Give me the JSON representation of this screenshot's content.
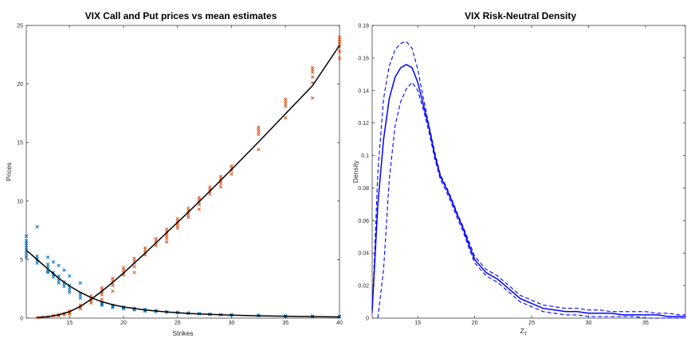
{
  "chart_data": [
    {
      "type": "scatter",
      "title": "VIX Call and Put prices vs mean estimates",
      "xlabel": "Strikes",
      "ylabel": "Prices",
      "xlim": [
        11,
        40
      ],
      "ylim": [
        0,
        25
      ],
      "xticks": [
        15,
        20,
        25,
        30,
        35,
        40
      ],
      "yticks": [
        0,
        5,
        10,
        15,
        20,
        25
      ],
      "grid": false,
      "colors": {
        "puts": "#0072BD",
        "calls": "#D95319",
        "mean": "#000000"
      },
      "series": [
        {
          "marker": "x",
          "color": "#0072BD",
          "points": [
            [
              11,
              6.6
            ],
            [
              11,
              6.4
            ],
            [
              11,
              6.2
            ],
            [
              11,
              6.0
            ],
            [
              11,
              5.8
            ],
            [
              11,
              5.5
            ],
            [
              11,
              5.2
            ],
            [
              11,
              7.0
            ],
            [
              12,
              5.3
            ],
            [
              12,
              5.1
            ],
            [
              12,
              4.9
            ],
            [
              12,
              4.7
            ],
            [
              12,
              7.8
            ],
            [
              13,
              4.6
            ],
            [
              13,
              4.4
            ],
            [
              13,
              4.2
            ],
            [
              13,
              4.0
            ],
            [
              13,
              3.9
            ],
            [
              13,
              5.2
            ],
            [
              13.5,
              3.9
            ],
            [
              13.5,
              3.7
            ],
            [
              13.5,
              3.5
            ],
            [
              13.5,
              4.8
            ],
            [
              14,
              3.6
            ],
            [
              14,
              3.4
            ],
            [
              14,
              3.2
            ],
            [
              14,
              3.0
            ],
            [
              14,
              4.5
            ],
            [
              14.5,
              3.1
            ],
            [
              14.5,
              2.9
            ],
            [
              14.5,
              2.7
            ],
            [
              14.5,
              4.1
            ],
            [
              15,
              2.8
            ],
            [
              15,
              2.6
            ],
            [
              15,
              2.4
            ],
            [
              15,
              2.2
            ],
            [
              15,
              3.6
            ],
            [
              16,
              2.1
            ],
            [
              16,
              1.9
            ],
            [
              16,
              1.7
            ],
            [
              16,
              3.0
            ],
            [
              17,
              1.7
            ],
            [
              17,
              1.5
            ],
            [
              17,
              1.3
            ],
            [
              18,
              1.3
            ],
            [
              18,
              1.2
            ],
            [
              18,
              1.1
            ],
            [
              19,
              1.1
            ],
            [
              19,
              1.0
            ],
            [
              19,
              0.9
            ],
            [
              20,
              0.95
            ],
            [
              20,
              0.85
            ],
            [
              20,
              0.8
            ],
            [
              21,
              0.85
            ],
            [
              21,
              0.75
            ],
            [
              21,
              0.7
            ],
            [
              22,
              0.75
            ],
            [
              22,
              0.65
            ],
            [
              22,
              0.6
            ],
            [
              23,
              0.65
            ],
            [
              23,
              0.55
            ],
            [
              24,
              0.55
            ],
            [
              24,
              0.5
            ],
            [
              25,
              0.5
            ],
            [
              25,
              0.45
            ],
            [
              26,
              0.45
            ],
            [
              26,
              0.4
            ],
            [
              27,
              0.4
            ],
            [
              27,
              0.35
            ],
            [
              28,
              0.35
            ],
            [
              28,
              0.3
            ],
            [
              29,
              0.3
            ],
            [
              29,
              0.28
            ],
            [
              30,
              0.3
            ],
            [
              30,
              0.25
            ],
            [
              32.5,
              0.25
            ],
            [
              32.5,
              0.2
            ],
            [
              35,
              0.2
            ],
            [
              35,
              0.15
            ],
            [
              37.5,
              0.18
            ],
            [
              37.5,
              0.12
            ],
            [
              40,
              0.15
            ],
            [
              40,
              0.1
            ]
          ]
        },
        {
          "marker": "x",
          "color": "#D95319",
          "points": [
            [
              12,
              0.05
            ],
            [
              12.5,
              0.08
            ],
            [
              13,
              0.12
            ],
            [
              13.5,
              0.2
            ],
            [
              14,
              0.3
            ],
            [
              14,
              0.2
            ],
            [
              14.5,
              0.4
            ],
            [
              14.5,
              0.3
            ],
            [
              15,
              0.6
            ],
            [
              15,
              0.45
            ],
            [
              15,
              0.35
            ],
            [
              16,
              1.1
            ],
            [
              16,
              0.95
            ],
            [
              16,
              0.8
            ],
            [
              17,
              1.9
            ],
            [
              17,
              1.7
            ],
            [
              17,
              1.5
            ],
            [
              17,
              1.3
            ],
            [
              18,
              2.6
            ],
            [
              18,
              2.4
            ],
            [
              18,
              2.2
            ],
            [
              18,
              2.0
            ],
            [
              18,
              1.6
            ],
            [
              19,
              3.4
            ],
            [
              19,
              3.2
            ],
            [
              19,
              3.0
            ],
            [
              19,
              2.8
            ],
            [
              19,
              2.3
            ],
            [
              20,
              4.3
            ],
            [
              20,
              4.1
            ],
            [
              20,
              3.9
            ],
            [
              20,
              3.7
            ],
            [
              21,
              5.1
            ],
            [
              21,
              4.9
            ],
            [
              21,
              4.7
            ],
            [
              21,
              4.4
            ],
            [
              21,
              3.9
            ],
            [
              22,
              6.0
            ],
            [
              22,
              5.8
            ],
            [
              22,
              5.6
            ],
            [
              22,
              5.4
            ],
            [
              23,
              6.8
            ],
            [
              23,
              6.6
            ],
            [
              23,
              6.4
            ],
            [
              23,
              6.2
            ],
            [
              24,
              7.6
            ],
            [
              24,
              7.4
            ],
            [
              24,
              7.2
            ],
            [
              24,
              7.0
            ],
            [
              24,
              6.8
            ],
            [
              24,
              6.5
            ],
            [
              25,
              8.5
            ],
            [
              25,
              8.3
            ],
            [
              25,
              8.1
            ],
            [
              25,
              7.9
            ],
            [
              25,
              7.7
            ],
            [
              26,
              9.4
            ],
            [
              26,
              9.2
            ],
            [
              26,
              9.0
            ],
            [
              26,
              8.8
            ],
            [
              26,
              8.6
            ],
            [
              27,
              10.3
            ],
            [
              27,
              10.1
            ],
            [
              27,
              9.9
            ],
            [
              27,
              9.7
            ],
            [
              27,
              9.3
            ],
            [
              28,
              11.2
            ],
            [
              28,
              11.0
            ],
            [
              28,
              10.8
            ],
            [
              28,
              10.6
            ],
            [
              29,
              12.1
            ],
            [
              29,
              11.9
            ],
            [
              29,
              11.7
            ],
            [
              29,
              11.5
            ],
            [
              29,
              11.2
            ],
            [
              30,
              13.0
            ],
            [
              30,
              12.8
            ],
            [
              30,
              12.6
            ],
            [
              30,
              12.3
            ],
            [
              32.5,
              16.3
            ],
            [
              32.5,
              16.1
            ],
            [
              32.5,
              15.9
            ],
            [
              32.5,
              15.7
            ],
            [
              32.5,
              14.4
            ],
            [
              35,
              18.7
            ],
            [
              35,
              18.5
            ],
            [
              35,
              18.3
            ],
            [
              35,
              18.1
            ],
            [
              35,
              17.1
            ],
            [
              37.5,
              21.4
            ],
            [
              37.5,
              21.2
            ],
            [
              37.5,
              21.0
            ],
            [
              37.5,
              20.6
            ],
            [
              37.5,
              20.1
            ],
            [
              37.5,
              18.8
            ],
            [
              40,
              24.0
            ],
            [
              40,
              23.8
            ],
            [
              40,
              23.6
            ],
            [
              40,
              23.4
            ],
            [
              40,
              23.2
            ],
            [
              40,
              22.8
            ],
            [
              40,
              22.2
            ]
          ]
        },
        {
          "type": "line",
          "color": "#000000",
          "x": [
            11,
            12,
            13,
            14,
            15,
            16,
            17,
            18,
            19,
            20,
            22,
            24,
            26,
            28,
            30,
            32.5,
            35,
            37.5,
            40
          ],
          "y": [
            5.8,
            5.0,
            4.2,
            3.4,
            2.75,
            2.2,
            1.75,
            1.4,
            1.15,
            0.95,
            0.7,
            0.52,
            0.4,
            0.32,
            0.26,
            0.2,
            0.16,
            0.13,
            0.1
          ]
        },
        {
          "type": "line",
          "color": "#000000",
          "x": [
            12,
            13,
            14,
            15,
            16,
            17,
            18,
            19,
            20,
            22,
            24,
            26,
            28,
            30,
            32.5,
            35,
            37.5,
            40
          ],
          "y": [
            0.05,
            0.12,
            0.28,
            0.55,
            1.0,
            1.6,
            2.3,
            3.05,
            3.85,
            5.55,
            7.3,
            9.05,
            10.85,
            12.7,
            15.05,
            17.45,
            19.85,
            23.3
          ]
        }
      ]
    },
    {
      "type": "line",
      "title": "VIX Risk-Neutral Density",
      "xlabel": "Z",
      "xlabel_sub": "T",
      "ylabel": "Density",
      "xlim": [
        11,
        38.5
      ],
      "ylim": [
        0,
        0.18
      ],
      "xticks": [
        15,
        20,
        25,
        30,
        35
      ],
      "yticks": [
        0,
        0.02,
        0.04,
        0.06,
        0.08,
        0.1,
        0.12,
        0.14,
        0.16,
        0.18
      ],
      "grid": false,
      "color": "#0000FF",
      "series": [
        {
          "style": "solid",
          "x": [
            11,
            11.5,
            12,
            12.5,
            13,
            13.5,
            14,
            14.5,
            15,
            15.5,
            16,
            16.5,
            17,
            17.5,
            18,
            18.5,
            19,
            19.5,
            20,
            21,
            22,
            23,
            24,
            25,
            26,
            27,
            28,
            29,
            30,
            31,
            32,
            33,
            34,
            35,
            36,
            37,
            38,
            38.5
          ],
          "y": [
            0.005,
            0.07,
            0.11,
            0.135,
            0.148,
            0.154,
            0.156,
            0.154,
            0.145,
            0.131,
            0.117,
            0.1,
            0.087,
            0.08,
            0.072,
            0.063,
            0.055,
            0.045,
            0.036,
            0.028,
            0.024,
            0.018,
            0.012,
            0.009,
            0.006,
            0.005,
            0.004,
            0.004,
            0.003,
            0.003,
            0.003,
            0.002,
            0.002,
            0.002,
            0.002,
            0.001,
            0.001,
            0.001
          ]
        },
        {
          "style": "dashed",
          "x": [
            11,
            11.5,
            12,
            12.5,
            13,
            13.5,
            14,
            14.5,
            15,
            15.5,
            16,
            16.5,
            17,
            17.5,
            18,
            18.5,
            19,
            19.5,
            20,
            21,
            22,
            23,
            24,
            25,
            26,
            27,
            28,
            29,
            30,
            31,
            32,
            33,
            34,
            35,
            36,
            37,
            38,
            38.5
          ],
          "y": [
            0.003,
            0.09,
            0.135,
            0.155,
            0.165,
            0.169,
            0.17,
            0.166,
            0.153,
            0.135,
            0.118,
            0.102,
            0.088,
            0.081,
            0.073,
            0.064,
            0.056,
            0.047,
            0.038,
            0.03,
            0.026,
            0.02,
            0.014,
            0.011,
            0.008,
            0.007,
            0.006,
            0.006,
            0.005,
            0.005,
            0.004,
            0.004,
            0.004,
            0.004,
            0.003,
            0.003,
            0.002,
            0.002
          ]
        },
        {
          "style": "dashed",
          "x": [
            11.5,
            12,
            12.5,
            13,
            13.5,
            14,
            14.5,
            15,
            15.5,
            16,
            16.5,
            17,
            17.5,
            18,
            18.5,
            19,
            19.5,
            20,
            21,
            22,
            23,
            24,
            25,
            26,
            27,
            28,
            29,
            30,
            31,
            32,
            33,
            34,
            35,
            36,
            37,
            38,
            38.5
          ],
          "y": [
            0.0,
            0.03,
            0.085,
            0.118,
            0.133,
            0.141,
            0.145,
            0.14,
            0.128,
            0.114,
            0.098,
            0.085,
            0.078,
            0.07,
            0.061,
            0.053,
            0.043,
            0.034,
            0.026,
            0.022,
            0.016,
            0.01,
            0.007,
            0.004,
            0.003,
            0.002,
            0.002,
            0.001,
            0.001,
            0.001,
            0.001,
            0.001,
            0.0,
            0.0,
            0.0,
            0.0,
            0.0
          ]
        }
      ]
    }
  ]
}
